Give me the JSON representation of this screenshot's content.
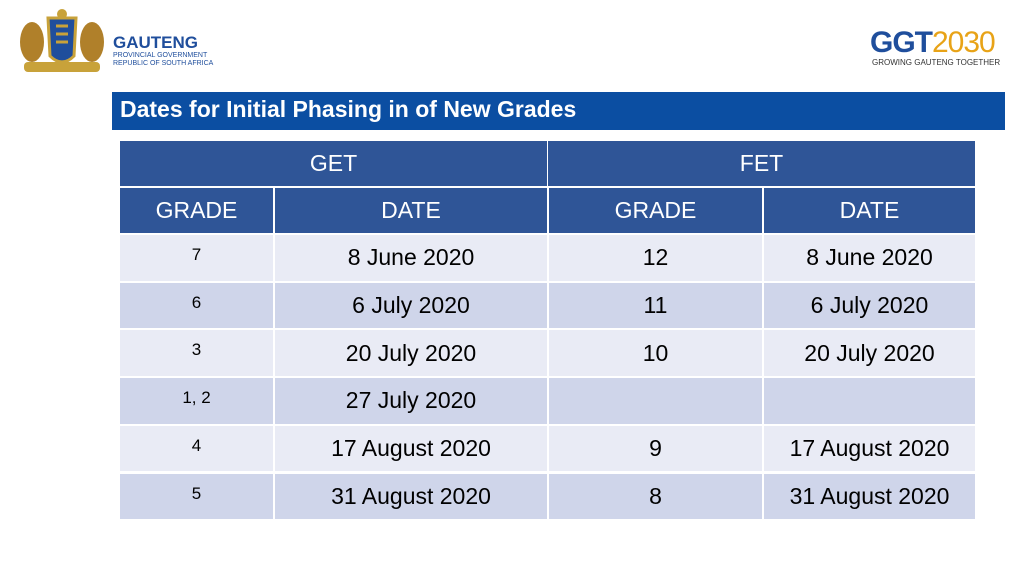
{
  "header": {
    "left_logo": {
      "name": "GAUTENG",
      "line1": "PROVINCIAL GOVERNMENT",
      "line2": "REPUBLIC OF SOUTH AFRICA"
    },
    "right_logo": {
      "name_a": "GGT",
      "name_b": "2030",
      "tagline": "GROWING GAUTENG TOGETHER"
    }
  },
  "title": "Dates for Initial Phasing in of New Grades",
  "table": {
    "groups": [
      "GET",
      "FET"
    ],
    "columns": [
      "GRADE",
      "DATE",
      "GRADE",
      "DATE"
    ],
    "rows": [
      [
        "7",
        "8 June 2020",
        "12",
        "8 June 2020"
      ],
      [
        "6",
        "6 July 2020",
        "11",
        "6 July 2020"
      ],
      [
        "3",
        "20 July 2020",
        "10",
        "20 July 2020"
      ],
      [
        "1, 2",
        "27 July 2020",
        null,
        null
      ],
      [
        "4",
        "17 August 2020",
        "9",
        "17 August 2020"
      ],
      [
        "5",
        "31 August 2020",
        "8",
        "31 August 2020"
      ]
    ]
  }
}
